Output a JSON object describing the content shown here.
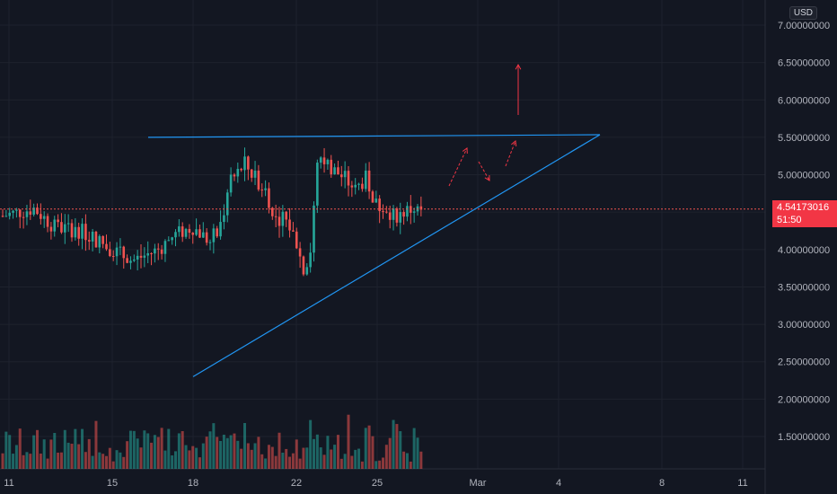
{
  "price_scale": {
    "currency": "USD",
    "ticks": [
      "7.00000000",
      "6.50000000",
      "6.00000000",
      "5.50000000",
      "5.00000000",
      "4.50000000",
      "4.00000000",
      "3.50000000",
      "3.00000000",
      "2.50000000",
      "2.00000000",
      "1.50000000"
    ],
    "tick_values": [
      7.0,
      6.5,
      6.0,
      5.5,
      5.0,
      4.5,
      4.0,
      3.5,
      3.0,
      2.5,
      2.0,
      1.5
    ]
  },
  "time_scale": {
    "labels": [
      "11",
      "15",
      "18",
      "22",
      "25",
      "Mar",
      "4",
      "8",
      "11"
    ]
  },
  "current_price": {
    "value": "4.54173016",
    "countdown": "51:50",
    "color": "#f23645"
  },
  "colors": {
    "background": "#131722",
    "grid": "#1e222d",
    "up": "#26a69a",
    "down": "#ef5350",
    "trendline": "#2196f3",
    "arrow": "#f23645",
    "scale_text": "#b2b5be"
  },
  "chart_data": {
    "type": "candlestick",
    "price_range": [
      1.0,
      7.2
    ],
    "volume_bars": "teal = up candle, red = down candle"
  }
}
